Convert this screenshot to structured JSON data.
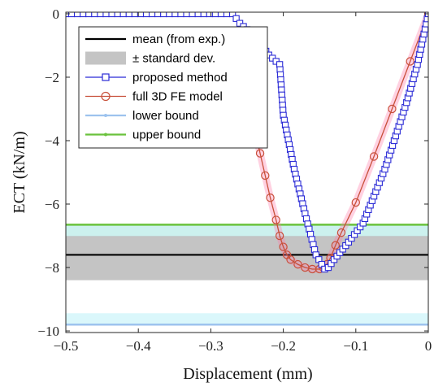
{
  "chart_data": {
    "type": "line",
    "xlabel": "Displacement (mm)",
    "ylabel": "ECT (kN/m)",
    "xlim": [
      -0.5,
      0
    ],
    "ylim": [
      -10.05,
      0.05
    ],
    "xticks": [
      -0.5,
      -0.4,
      -0.3,
      -0.2,
      -0.1,
      0
    ],
    "xtick_labels": [
      "−0.5",
      "−0.4",
      "−0.3",
      "−0.2",
      "−0.1",
      "0"
    ],
    "yticks": [
      0,
      -2,
      -4,
      -6,
      -8,
      -10
    ],
    "ytick_labels": [
      "0",
      "−2",
      "−4",
      "−6",
      "−8",
      "−10"
    ],
    "grid": false,
    "legend_position": "top-left",
    "mean": -7.6,
    "std_band": [
      -8.4,
      -7.0
    ],
    "series": [
      {
        "name": "mean (from exp.)",
        "style": "line",
        "color": "#000000",
        "x": [
          -0.5,
          0
        ],
        "y": [
          -7.6,
          -7.6
        ]
      },
      {
        "name": "± standard dev.",
        "style": "band",
        "color": "#c4c4c4",
        "x": [
          -0.5,
          0
        ],
        "y_low": [
          -8.4,
          -8.4
        ],
        "y_high": [
          -7.0,
          -7.0
        ]
      },
      {
        "name": "proposed method",
        "style": "line-square-markers",
        "color": "#2b2bd6",
        "x": [
          -0.5,
          -0.27,
          -0.26,
          -0.24,
          -0.22,
          -0.205,
          -0.2,
          -0.185,
          -0.17,
          -0.155,
          -0.143,
          -0.138,
          -0.13,
          -0.11,
          -0.09,
          -0.06,
          -0.03,
          -0.015,
          0
        ],
        "y": [
          0,
          0,
          -0.3,
          -0.7,
          -1.3,
          -1.6,
          -3.2,
          -4.9,
          -6.3,
          -7.6,
          -8.05,
          -8.0,
          -7.75,
          -7.2,
          -6.6,
          -4.9,
          -2.8,
          -1.6,
          0
        ]
      },
      {
        "name": "full 3D FE model",
        "style": "line-circle-markers",
        "color": "#c8503a",
        "x": [
          -0.24,
          -0.238,
          -0.235,
          -0.232,
          -0.225,
          -0.218,
          -0.21,
          -0.205,
          -0.2,
          -0.195,
          -0.19,
          -0.18,
          -0.17,
          -0.16,
          -0.15,
          -0.145,
          -0.14,
          -0.135,
          -0.128,
          -0.12,
          -0.1,
          -0.075,
          -0.05,
          -0.025,
          0
        ],
        "y": [
          -3.3,
          -3.7,
          -4.1,
          -4.4,
          -5.1,
          -5.8,
          -6.5,
          -7.0,
          -7.35,
          -7.6,
          -7.75,
          -7.9,
          -8.0,
          -8.05,
          -8.05,
          -8.0,
          -7.9,
          -7.7,
          -7.3,
          -6.9,
          -5.95,
          -4.5,
          -3.0,
          -1.5,
          0
        ]
      },
      {
        "name": "lower bound",
        "style": "line",
        "color": "#9dc3ee",
        "x": [
          -0.5,
          0
        ],
        "y": [
          -9.8,
          -9.8
        ]
      },
      {
        "name": "upper bound",
        "style": "line",
        "color": "#6ac23c",
        "x": [
          -0.5,
          0
        ],
        "y": [
          -6.65,
          -6.65
        ]
      }
    ]
  }
}
